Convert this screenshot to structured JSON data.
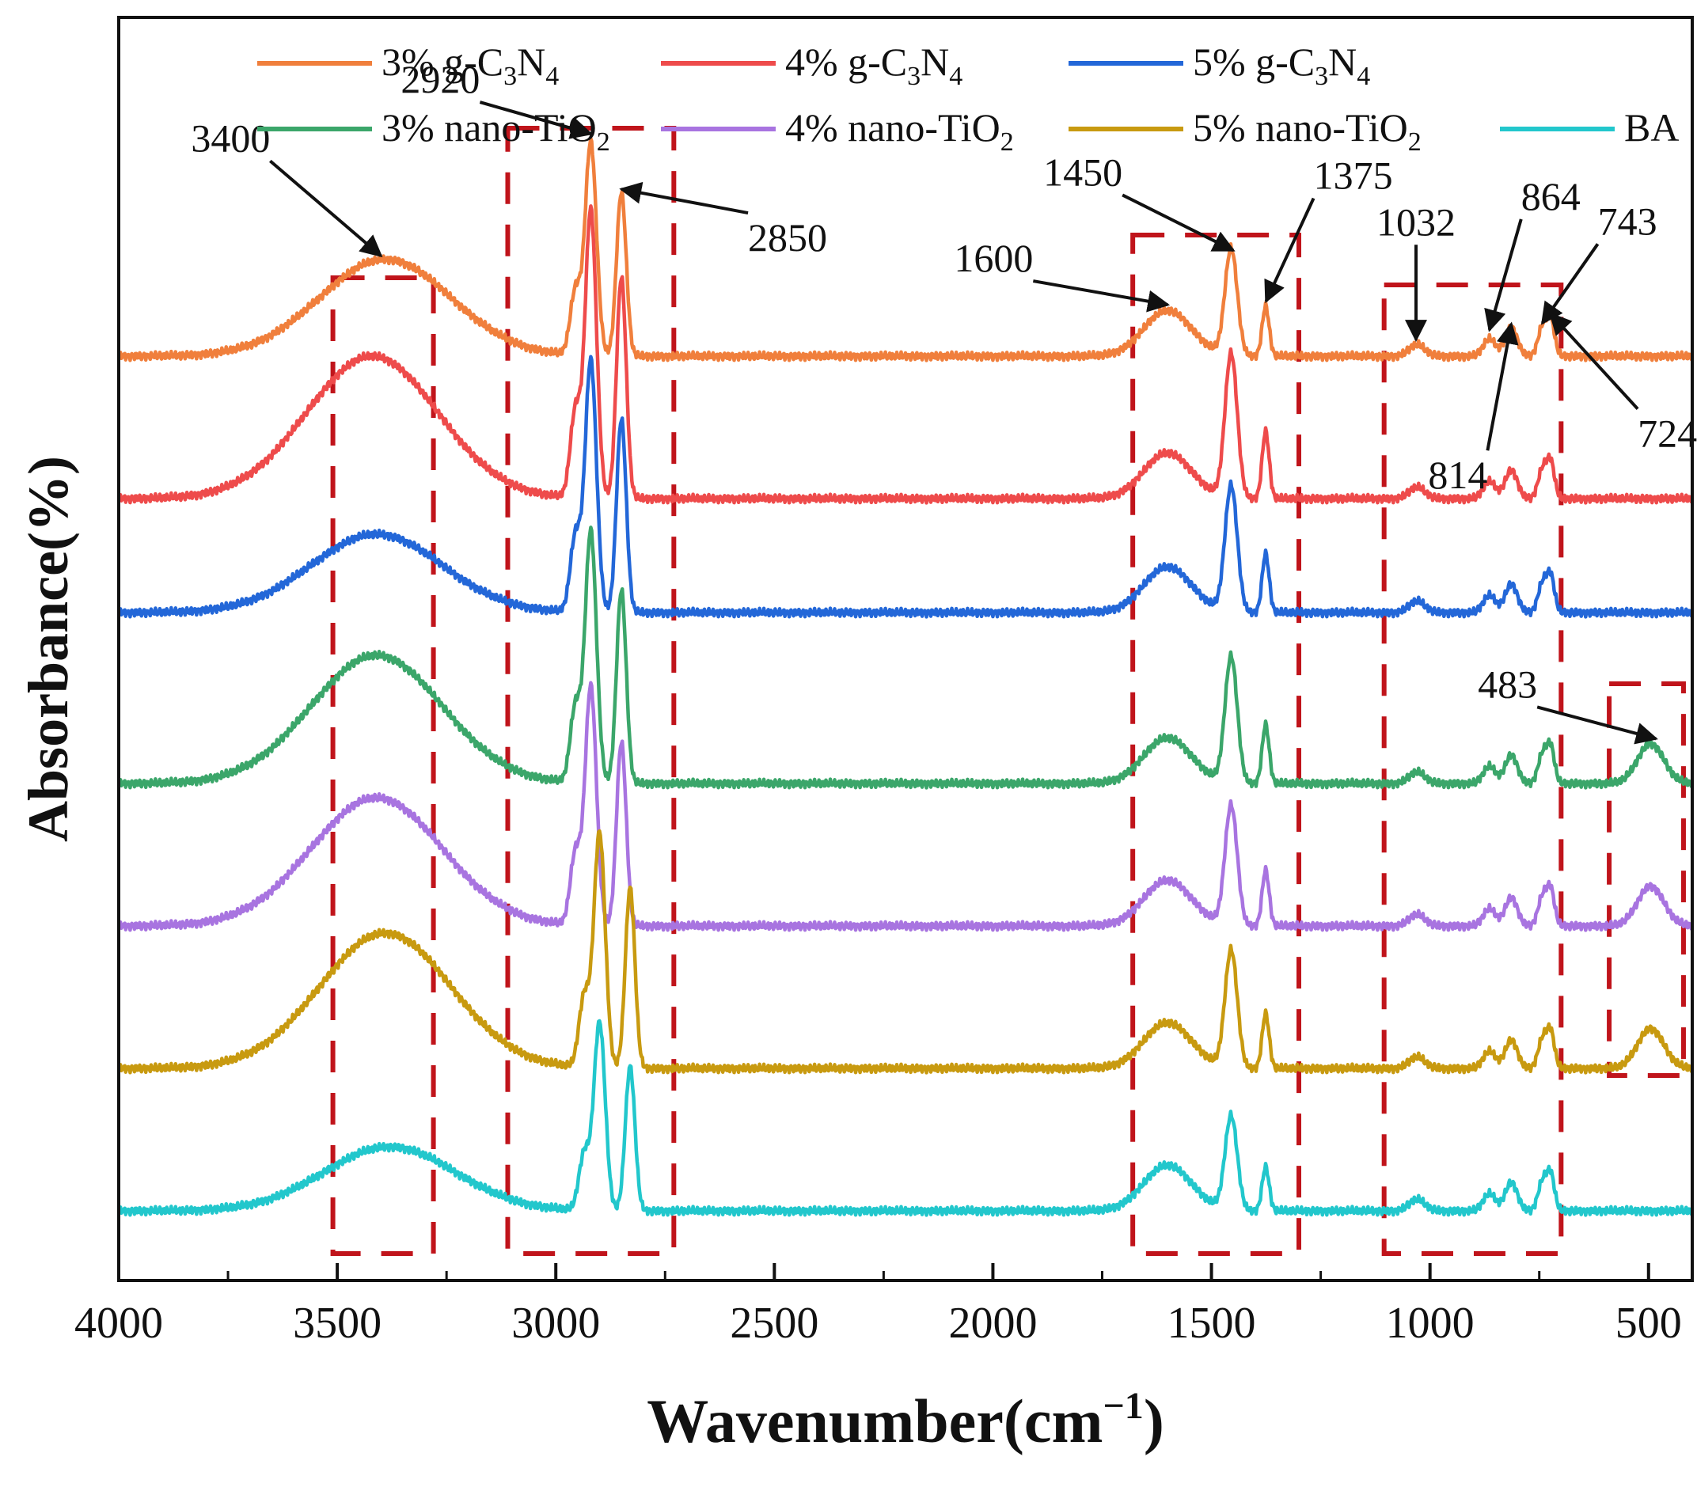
{
  "chart_data": {
    "type": "line",
    "title": "",
    "xlabel": "Wavenumber(cm",
    "xlabel_sup": "−1",
    "xlabel_close": ")",
    "ylabel": "Absorbance(%)",
    "xlim": [
      4000,
      400
    ],
    "x_reversed": true,
    "x_ticks": [
      4000,
      3500,
      3000,
      2500,
      2000,
      1500,
      1000,
      500
    ],
    "x_tick_labels": [
      "4000",
      "3500",
      "3000",
      "2500",
      "2000",
      "1500",
      "1000",
      "500"
    ],
    "y_ticks_shown": false,
    "legend_position": "top",
    "series": [
      {
        "name": "3% g-C3N4",
        "label_main": "3% g-C",
        "sub1": "3",
        "mid": "N",
        "sub2": "4",
        "color": "#F07F3C",
        "offset": 6,
        "broad_height": 0.68,
        "broad_center": 3390,
        "peak_scale": 1.0,
        "shift": 0
      },
      {
        "name": "4% g-C3N4",
        "label_main": "4% g-C",
        "sub1": "3",
        "mid": "N",
        "sub2": "4",
        "color": "#EE4B4B",
        "offset": 5,
        "broad_height": 1.0,
        "broad_center": 3420,
        "peak_scale": 1.35,
        "shift": 0
      },
      {
        "name": "5% g-C3N4",
        "label_main": "5% g-C",
        "sub1": "3",
        "mid": "N",
        "sub2": "4",
        "color": "#2367D8",
        "offset": 4.2,
        "broad_height": 0.55,
        "broad_center": 3410,
        "peak_scale": 1.18,
        "shift": 0
      },
      {
        "name": "3% nano-TiO2",
        "label_main": "3% nano-TiO",
        "sub1": "2",
        "mid": "",
        "sub2": "",
        "color": "#3BA66A",
        "offset": 3,
        "broad_height": 0.9,
        "broad_center": 3410,
        "peak_scale": 1.18,
        "shift": 0
      },
      {
        "name": "4% nano-TiO2",
        "label_main": "4% nano-TiO",
        "sub1": "2",
        "mid": "",
        "sub2": "",
        "color": "#A874E0",
        "offset": 2,
        "broad_height": 0.9,
        "broad_center": 3410,
        "peak_scale": 1.12,
        "shift": 0
      },
      {
        "name": "5% nano-TiO2",
        "label_main": "5% nano-TiO",
        "sub1": "2",
        "mid": "",
        "sub2": "",
        "color": "#C89A10",
        "offset": 1,
        "broad_height": 0.95,
        "broad_center": 3390,
        "peak_scale": 1.1,
        "shift": -20
      },
      {
        "name": "BA",
        "label_main": "BA",
        "sub1": "",
        "mid": "",
        "sub2": "",
        "color": "#22C7CC",
        "offset": 0,
        "broad_height": 0.45,
        "broad_center": 3380,
        "peak_scale": 0.88,
        "shift": -20
      }
    ],
    "peaks": [
      {
        "center": 3400,
        "label": "3400"
      },
      {
        "center": 2920,
        "label": "2920"
      },
      {
        "center": 2850,
        "label": "2850"
      },
      {
        "center": 1600,
        "label": "1600"
      },
      {
        "center": 1450,
        "label": "1450"
      },
      {
        "center": 1375,
        "label": "1375"
      },
      {
        "center": 1032,
        "label": "1032"
      },
      {
        "center": 864,
        "label": "864"
      },
      {
        "center": 814,
        "label": "814"
      },
      {
        "center": 743,
        "label": "743"
      },
      {
        "center": 724,
        "label": "724"
      },
      {
        "center": 483,
        "label": "483"
      }
    ],
    "highlight_boxes": [
      {
        "x_from": 3510,
        "x_to": 3280,
        "y_top": 6.55,
        "y_bottom": -0.3
      },
      {
        "x_from": 3110,
        "x_to": 2730,
        "y_top": 7.6,
        "y_bottom": -0.3
      },
      {
        "x_from": 1680,
        "x_to": 1300,
        "y_top": 6.85,
        "y_bottom": -0.3
      },
      {
        "x_from": 1105,
        "x_to": 700,
        "y_top": 6.5,
        "y_bottom": -0.3
      },
      {
        "x_from": 590,
        "x_to": 420,
        "y_top": 3.7,
        "y_bottom": 0.95
      }
    ]
  }
}
